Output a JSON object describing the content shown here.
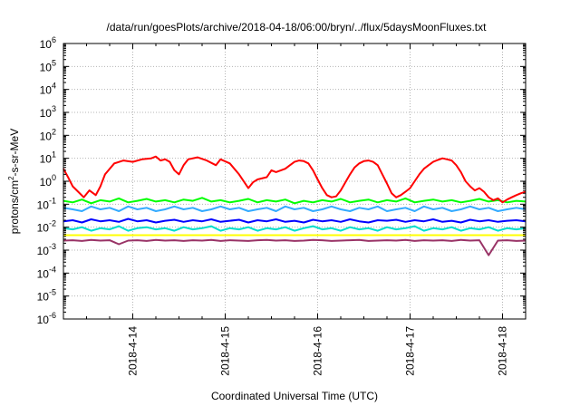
{
  "chart_data": {
    "type": "line",
    "title": "/data/run/goesPlots/archive/2018-04-18/06:00/bryn/../flux/5daysMoonFluxes.txt",
    "xlabel": "Coordinated Universal Time (UTC)",
    "ylabel": {
      "base": "protons/cm",
      "sup": "2",
      "rest": "-s-sr-MeV"
    },
    "y_scale": "log",
    "ylim": [
      1e-06,
      1000000.0
    ],
    "y_ticks": [
      {
        "exp": "-6"
      },
      {
        "exp": "-5"
      },
      {
        "exp": "-4"
      },
      {
        "exp": "-3"
      },
      {
        "exp": "-2"
      },
      {
        "exp": "-1"
      },
      {
        "exp": "0"
      },
      {
        "exp": "1"
      },
      {
        "exp": "2"
      },
      {
        "exp": "3"
      },
      {
        "exp": "4"
      },
      {
        "exp": "5"
      },
      {
        "exp": "6"
      }
    ],
    "xlim": [
      "2018-04-13 06:00",
      "2018-04-18 06:00"
    ],
    "x_ticks": [
      "2018-4-14",
      "2018-4-15",
      "2018-4-16",
      "2018-4-17",
      "2018-4-18"
    ],
    "grid": true,
    "series": [
      {
        "color": "#ff0000",
        "x": [
          0,
          0.05,
          0.1,
          0.16,
          0.22,
          0.28,
          0.35,
          0.4,
          0.45,
          0.55,
          0.65,
          0.75,
          0.85,
          0.95,
          1.0,
          1.05,
          1.1,
          1.15,
          1.2,
          1.25,
          1.3,
          1.35,
          1.45,
          1.55,
          1.65,
          1.7,
          1.8,
          1.9,
          2.0,
          2.05,
          2.1,
          2.2,
          2.25,
          2.3,
          2.4,
          2.45,
          2.5,
          2.55,
          2.6,
          2.65,
          2.7,
          2.75,
          2.8,
          2.85,
          2.9,
          2.95,
          3.0,
          3.05,
          3.1,
          3.15,
          3.2,
          3.25,
          3.3,
          3.35,
          3.4,
          3.45,
          3.5,
          3.55,
          3.6,
          3.65,
          3.7,
          3.75,
          3.8,
          3.85,
          3.9,
          3.95,
          4.0,
          4.05,
          4.1,
          4.15,
          4.2,
          4.25,
          4.3,
          4.35,
          4.4,
          4.45,
          4.5,
          4.55,
          4.6,
          4.65,
          4.7,
          4.75,
          4.8,
          4.85,
          4.9,
          4.95,
          5.0
        ],
        "y": [
          3.5,
          1.5,
          0.6,
          0.35,
          0.2,
          0.4,
          0.25,
          0.6,
          2.0,
          6.0,
          8.0,
          7.0,
          9.0,
          10,
          12,
          8.0,
          9.0,
          7.0,
          3.0,
          2.0,
          5.0,
          9.0,
          11,
          8.0,
          5.0,
          9.0,
          6.0,
          2.0,
          0.5,
          0.9,
          1.2,
          1.5,
          3.0,
          2.5,
          3.5,
          5.0,
          7.0,
          8.0,
          7.5,
          6.0,
          3.0,
          1.2,
          0.5,
          0.25,
          0.2,
          0.22,
          0.4,
          0.9,
          2.0,
          4.0,
          6.0,
          7.5,
          8.0,
          7.0,
          5.0,
          2.0,
          0.8,
          0.3,
          0.2,
          0.25,
          0.35,
          0.5,
          1.0,
          2.0,
          3.5,
          5.0,
          7.0,
          8.5,
          10,
          9.0,
          8.0,
          5.0,
          2.5,
          1.0,
          0.6,
          0.4,
          0.5,
          0.35,
          0.2,
          0.15,
          0.18,
          0.12,
          0.16,
          0.2,
          0.25,
          0.3,
          0.35
        ]
      },
      {
        "color": "#00ff00",
        "x": [
          0,
          0.1,
          0.2,
          0.3,
          0.4,
          0.5,
          0.6,
          0.7,
          0.8,
          0.9,
          1.0,
          1.1,
          1.2,
          1.3,
          1.4,
          1.5,
          1.6,
          1.7,
          1.8,
          1.9,
          2.0,
          2.1,
          2.2,
          2.3,
          2.4,
          2.5,
          2.6,
          2.7,
          2.8,
          2.9,
          3.0,
          3.1,
          3.2,
          3.3,
          3.4,
          3.5,
          3.6,
          3.7,
          3.8,
          3.9,
          4.0,
          4.1,
          4.2,
          4.3,
          4.4,
          4.5,
          4.6,
          4.7,
          4.8,
          4.9,
          5.0
        ],
        "y": [
          0.14,
          0.12,
          0.16,
          0.11,
          0.15,
          0.13,
          0.18,
          0.12,
          0.14,
          0.17,
          0.13,
          0.15,
          0.12,
          0.16,
          0.14,
          0.19,
          0.13,
          0.15,
          0.12,
          0.14,
          0.17,
          0.12,
          0.15,
          0.13,
          0.16,
          0.11,
          0.14,
          0.12,
          0.15,
          0.13,
          0.17,
          0.12,
          0.14,
          0.16,
          0.12,
          0.15,
          0.13,
          0.18,
          0.12,
          0.14,
          0.16,
          0.13,
          0.15,
          0.12,
          0.14,
          0.17,
          0.13,
          0.15,
          0.12,
          0.14,
          0.13
        ]
      },
      {
        "color": "#33aaff",
        "x": [
          0,
          0.1,
          0.2,
          0.3,
          0.4,
          0.5,
          0.6,
          0.7,
          0.8,
          0.9,
          1.0,
          1.1,
          1.2,
          1.3,
          1.4,
          1.5,
          1.6,
          1.7,
          1.8,
          1.9,
          2.0,
          2.1,
          2.2,
          2.3,
          2.4,
          2.5,
          2.6,
          2.7,
          2.8,
          2.9,
          3.0,
          3.1,
          3.2,
          3.3,
          3.4,
          3.5,
          3.6,
          3.7,
          3.8,
          3.9,
          4.0,
          4.1,
          4.2,
          4.3,
          4.4,
          4.5,
          4.6,
          4.7,
          4.8,
          4.9,
          5.0
        ],
        "y": [
          0.07,
          0.06,
          0.05,
          0.08,
          0.06,
          0.07,
          0.05,
          0.08,
          0.06,
          0.07,
          0.05,
          0.06,
          0.08,
          0.06,
          0.07,
          0.05,
          0.06,
          0.08,
          0.06,
          0.07,
          0.05,
          0.06,
          0.07,
          0.05,
          0.08,
          0.06,
          0.07,
          0.05,
          0.06,
          0.08,
          0.06,
          0.05,
          0.07,
          0.06,
          0.08,
          0.05,
          0.06,
          0.07,
          0.05,
          0.08,
          0.06,
          0.07,
          0.05,
          0.06,
          0.08,
          0.06,
          0.07,
          0.05,
          0.06,
          0.07,
          0.06
        ]
      },
      {
        "color": "#0000ff",
        "x": [
          0,
          0.1,
          0.2,
          0.3,
          0.4,
          0.5,
          0.6,
          0.7,
          0.8,
          0.9,
          1.0,
          1.1,
          1.2,
          1.3,
          1.4,
          1.5,
          1.6,
          1.7,
          1.8,
          1.9,
          2.0,
          2.1,
          2.2,
          2.3,
          2.4,
          2.5,
          2.6,
          2.7,
          2.8,
          2.9,
          3.0,
          3.1,
          3.2,
          3.3,
          3.4,
          3.5,
          3.6,
          3.7,
          3.8,
          3.9,
          4.0,
          4.1,
          4.2,
          4.3,
          4.4,
          4.5,
          4.6,
          4.7,
          4.8,
          4.9,
          5.0
        ],
        "y": [
          0.018,
          0.02,
          0.016,
          0.022,
          0.018,
          0.02,
          0.017,
          0.023,
          0.018,
          0.02,
          0.016,
          0.019,
          0.021,
          0.017,
          0.02,
          0.018,
          0.022,
          0.017,
          0.019,
          0.021,
          0.016,
          0.02,
          0.018,
          0.022,
          0.017,
          0.019,
          0.016,
          0.021,
          0.018,
          0.02,
          0.017,
          0.022,
          0.018,
          0.016,
          0.02,
          0.019,
          0.021,
          0.017,
          0.02,
          0.018,
          0.022,
          0.017,
          0.019,
          0.016,
          0.021,
          0.018,
          0.02,
          0.017,
          0.019,
          0.02,
          0.018
        ]
      },
      {
        "color": "#00ddcc",
        "x": [
          0,
          0.1,
          0.2,
          0.3,
          0.4,
          0.5,
          0.6,
          0.7,
          0.8,
          0.9,
          1.0,
          1.1,
          1.2,
          1.3,
          1.4,
          1.5,
          1.6,
          1.7,
          1.8,
          1.9,
          2.0,
          2.1,
          2.2,
          2.3,
          2.4,
          2.5,
          2.6,
          2.7,
          2.8,
          2.9,
          3.0,
          3.1,
          3.2,
          3.3,
          3.4,
          3.5,
          3.6,
          3.7,
          3.8,
          3.9,
          4.0,
          4.1,
          4.2,
          4.3,
          4.4,
          4.5,
          4.6,
          4.7,
          4.8,
          4.9,
          5.0
        ],
        "y": [
          0.009,
          0.008,
          0.01,
          0.007,
          0.009,
          0.008,
          0.011,
          0.007,
          0.009,
          0.01,
          0.008,
          0.009,
          0.007,
          0.01,
          0.008,
          0.009,
          0.011,
          0.007,
          0.009,
          0.008,
          0.01,
          0.007,
          0.009,
          0.008,
          0.01,
          0.007,
          0.009,
          0.011,
          0.008,
          0.009,
          0.007,
          0.01,
          0.008,
          0.009,
          0.007,
          0.01,
          0.008,
          0.009,
          0.011,
          0.007,
          0.009,
          0.008,
          0.01,
          0.007,
          0.009,
          0.008,
          0.01,
          0.007,
          0.009,
          0.008,
          0.009
        ]
      },
      {
        "color": "#ffff00",
        "x": [
          0,
          0.1,
          0.2,
          0.3,
          0.4,
          0.5,
          0.6,
          0.7,
          0.8,
          0.9,
          1.0,
          1.1,
          1.2,
          1.3,
          1.4,
          1.5,
          1.6,
          1.7,
          1.8,
          1.9,
          2.0,
          2.1,
          2.2,
          2.3,
          2.4,
          2.5,
          2.6,
          2.7,
          2.8,
          2.9,
          3.0,
          3.1,
          3.2,
          3.3,
          3.4,
          3.5,
          3.6,
          3.7,
          3.8,
          3.9,
          4.0,
          4.1,
          4.2,
          4.3,
          4.4,
          4.5,
          4.6,
          4.7,
          4.8,
          4.9,
          5.0
        ],
        "y": [
          0.0045,
          0.0045,
          0.0045,
          0.0045,
          0.0045,
          0.0045,
          0.0045,
          0.0045,
          0.0045,
          0.0045,
          0.0045,
          0.0045,
          0.0045,
          0.0045,
          0.0045,
          0.0045,
          0.0045,
          0.0045,
          0.0045,
          0.0045,
          0.0045,
          0.0045,
          0.0045,
          0.0045,
          0.0045,
          0.0045,
          0.0045,
          0.0045,
          0.0045,
          0.0045,
          0.0045,
          0.0045,
          0.0045,
          0.0045,
          0.0045,
          0.0045,
          0.0045,
          0.0045,
          0.0045,
          0.0045,
          0.0045,
          0.0045,
          0.0045,
          0.0045,
          0.0045,
          0.0045,
          0.0045,
          0.0045,
          0.0045,
          0.0045,
          0.0045
        ]
      },
      {
        "color": "#993366",
        "x": [
          0,
          0.1,
          0.2,
          0.3,
          0.4,
          0.5,
          0.6,
          0.7,
          0.8,
          0.9,
          1.0,
          1.1,
          1.2,
          1.3,
          1.4,
          1.5,
          1.6,
          1.7,
          1.8,
          1.9,
          2.0,
          2.1,
          2.2,
          2.3,
          2.4,
          2.5,
          2.6,
          2.7,
          2.8,
          2.9,
          3.0,
          3.1,
          3.2,
          3.3,
          3.4,
          3.5,
          3.6,
          3.7,
          3.8,
          3.9,
          4.0,
          4.1,
          4.2,
          4.3,
          4.4,
          4.5,
          4.6,
          4.7,
          4.8,
          4.9,
          5.0
        ],
        "y": [
          0.0026,
          0.0027,
          0.0025,
          0.0028,
          0.0026,
          0.0027,
          0.0018,
          0.0026,
          0.0027,
          0.0025,
          0.0028,
          0.0026,
          0.0027,
          0.0025,
          0.0027,
          0.0026,
          0.0028,
          0.0025,
          0.0027,
          0.0026,
          0.0025,
          0.0027,
          0.0028,
          0.0026,
          0.0027,
          0.0025,
          0.0026,
          0.0028,
          0.0027,
          0.0025,
          0.0026,
          0.0027,
          0.0028,
          0.0025,
          0.0026,
          0.0027,
          0.0026,
          0.0028,
          0.0025,
          0.0027,
          0.0026,
          0.0027,
          0.0025,
          0.0028,
          0.0026,
          0.0027,
          0.0006,
          0.0026,
          0.0027,
          0.0025,
          0.0026
        ]
      }
    ]
  }
}
